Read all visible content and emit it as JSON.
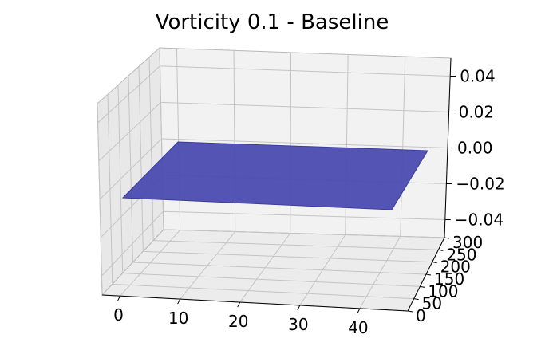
{
  "chart_data": {
    "type": "surface3d",
    "title": "Vorticity 0.1 - Baseline",
    "xlabel": "",
    "ylabel": "",
    "zlabel": "",
    "x_ticks": [
      "0",
      "10",
      "20",
      "30",
      "40"
    ],
    "y_ticks": [
      "0",
      "50",
      "100",
      "150",
      "200",
      "250",
      "300"
    ],
    "z_ticks": [
      "0.04",
      "0.02",
      "0.00",
      "−0.02",
      "−0.04"
    ],
    "xlim": [
      -3,
      48
    ],
    "ylim": [
      0,
      300
    ],
    "zlim": [
      -0.05,
      0.05
    ],
    "surface": {
      "z_value": 0.0,
      "x_range": [
        0,
        49
      ],
      "y_range": [
        0,
        300
      ],
      "color": "#4b4bb0"
    },
    "pane_color": "#f2f2f2",
    "grid": true
  }
}
